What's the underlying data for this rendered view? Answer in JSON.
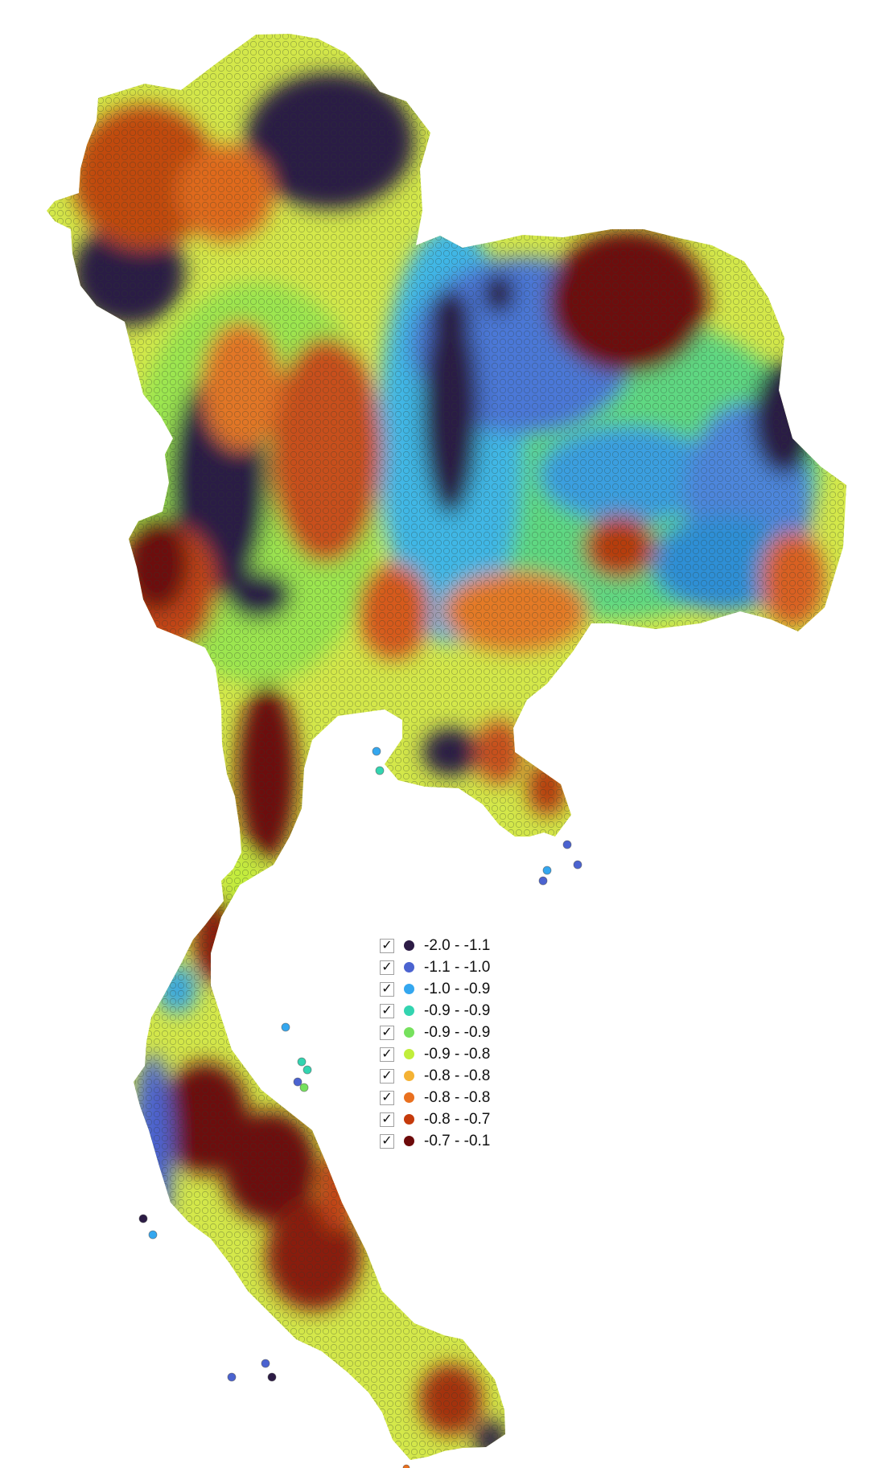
{
  "map": {
    "classes": [
      {
        "label": "-2.0 - -1.1",
        "color": "#2c1b45",
        "checked": true
      },
      {
        "label": "-1.1 - -1.0",
        "color": "#4b63d0",
        "checked": true
      },
      {
        "label": "-1.0 - -0.9",
        "color": "#34a7ef",
        "checked": true
      },
      {
        "label": "-0.9 - -0.9",
        "color": "#33d4b0",
        "checked": true
      },
      {
        "label": "-0.9 - -0.9",
        "color": "#76e15d",
        "checked": true
      },
      {
        "label": "-0.9 - -0.8",
        "color": "#c1ee3b",
        "checked": true
      },
      {
        "label": "-0.8 - -0.8",
        "color": "#f4b234",
        "checked": true
      },
      {
        "label": "-0.8 - -0.8",
        "color": "#e9701f",
        "checked": true
      },
      {
        "label": "-0.8 - -0.7",
        "color": "#c53a0b",
        "checked": true
      },
      {
        "label": "-0.7 - -0.1",
        "color": "#6d0a0a",
        "checked": true
      }
    ],
    "check_glyph": "✓"
  }
}
